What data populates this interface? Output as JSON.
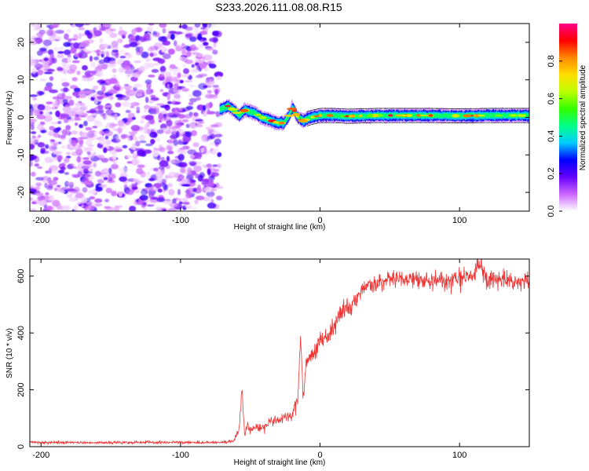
{
  "title": "S233.2026.111.08.08.R15",
  "chart_data": [
    {
      "type": "heatmap",
      "title": "S233.2026.111.08.08.R15",
      "xlabel": "Height of straight line (km)",
      "ylabel": "Frequency (Hz)",
      "xlim": [
        -208,
        150
      ],
      "ylim": [
        -25,
        25
      ],
      "xticks": [
        -200,
        -100,
        0,
        100
      ],
      "yticks": [
        -20,
        -10,
        0,
        10,
        20
      ],
      "noise_region_x": [
        -208,
        -72
      ],
      "signal_start_x": -72,
      "ridge": {
        "x": [
          -72,
          -66,
          -62,
          -58,
          -54,
          -50,
          -46,
          -42,
          -38,
          -34,
          -30,
          -26,
          -22,
          -20,
          -18,
          -16,
          -14,
          -12,
          -10,
          -6,
          0,
          10,
          20,
          40,
          60,
          80,
          100,
          120,
          150
        ],
        "freq": [
          2,
          3,
          2,
          0.5,
          2,
          1.5,
          1,
          0,
          -0.5,
          -1,
          -1.5,
          -1.5,
          0.5,
          2.5,
          1.5,
          0,
          -0.5,
          -1,
          -0.5,
          0,
          0.5,
          0.5,
          0.3,
          0.5,
          0.5,
          0.5,
          0.4,
          0.5,
          0.5
        ]
      },
      "colorbar": {
        "label": "Normalized spectral amplitude",
        "range": [
          0,
          1
        ],
        "ticks": [
          0.0,
          0.2,
          0.4,
          0.6,
          0.8
        ],
        "tick_labels": [
          "0.0",
          "0.2",
          "0.4",
          "0.6",
          "0.8"
        ],
        "colors": [
          "#ffffff",
          "#cc66ff",
          "#6600ff",
          "#0000ff",
          "#00ccff",
          "#00ff88",
          "#33ff00",
          "#bbff00",
          "#ffdd00",
          "#ff8800",
          "#ff0000",
          "#ff0088"
        ]
      }
    },
    {
      "type": "line",
      "xlabel": "Height of straight line (km)",
      "ylabel": "SNR (10 * v/v)",
      "xlim": [
        -208,
        150
      ],
      "ylim": [
        0,
        660
      ],
      "xticks": [
        -200,
        -100,
        0,
        100
      ],
      "yticks": [
        0,
        200,
        400,
        600
      ],
      "series": [
        {
          "name": "SNR",
          "color": "#ee3333",
          "x": [
            -208,
            -150,
            -100,
            -70,
            -62,
            -58,
            -56,
            -54,
            -52,
            -50,
            -45,
            -40,
            -35,
            -30,
            -25,
            -20,
            -16,
            -14,
            -12,
            -10,
            -5,
            0,
            5,
            10,
            15,
            20,
            25,
            30,
            35,
            40,
            50,
            60,
            80,
            100,
            110,
            115,
            120,
            130,
            140,
            150
          ],
          "y": [
            15,
            14,
            15,
            15,
            18,
            60,
            200,
            40,
            80,
            55,
            70,
            65,
            95,
            90,
            100,
            110,
            170,
            380,
            160,
            300,
            320,
            380,
            380,
            420,
            470,
            480,
            510,
            550,
            580,
            570,
            590,
            590,
            580,
            590,
            600,
            650,
            580,
            590,
            575,
            580
          ]
        }
      ]
    }
  ]
}
